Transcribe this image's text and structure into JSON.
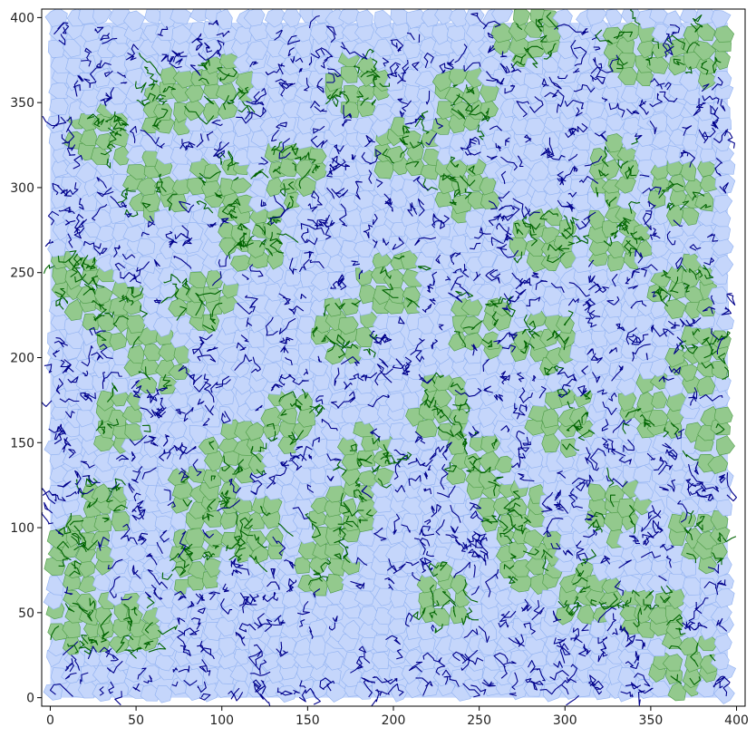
{
  "chart_data": {
    "type": "scatter",
    "title": "",
    "xlabel": "",
    "ylabel": "",
    "xlim": [
      -5,
      405
    ],
    "ylim": [
      -5,
      405
    ],
    "x_ticks": [
      0,
      50,
      100,
      150,
      200,
      250,
      300,
      350,
      400
    ],
    "y_ticks": [
      0,
      50,
      100,
      150,
      200,
      250,
      300,
      350,
      400
    ],
    "x_tick_labels": [
      "0",
      "50",
      "100",
      "150",
      "200",
      "250",
      "300",
      "350",
      "400"
    ],
    "y_tick_labels": [
      "0",
      "50",
      "100",
      "150",
      "200",
      "250",
      "300",
      "350",
      "400"
    ],
    "grid": false,
    "legend": "none",
    "background_region": {
      "x": [
        0,
        395
      ],
      "y": [
        0,
        397
      ]
    },
    "series": [
      {
        "values": [],
        "style": "voronoi cells",
        "color": "#c5d6fb",
        "edge_color": "#8fb0f0"
      },
      {
        "values": [],
        "style": "voronoi cells",
        "color": "#93c98d",
        "edge_color": "#4b9a45"
      },
      {
        "values": [],
        "style": "line segments",
        "color": "#006400"
      },
      {
        "values": [],
        "style": "line segments",
        "color": "#00008b"
      }
    ],
    "green_cluster_centers": [
      [
        20,
        45
      ],
      [
        45,
        40
      ],
      [
        30,
        110
      ],
      [
        15,
        80
      ],
      [
        85,
        80
      ],
      [
        90,
        120
      ],
      [
        120,
        100
      ],
      [
        170,
        110
      ],
      [
        160,
        80
      ],
      [
        230,
        60
      ],
      [
        280,
        80
      ],
      [
        270,
        110
      ],
      [
        310,
        60
      ],
      [
        350,
        50
      ],
      [
        370,
        20
      ],
      [
        330,
        110
      ],
      [
        380,
        95
      ],
      [
        390,
        150
      ],
      [
        250,
        140
      ],
      [
        230,
        170
      ],
      [
        185,
        140
      ],
      [
        140,
        165
      ],
      [
        110,
        145
      ],
      [
        40,
        165
      ],
      [
        60,
        200
      ],
      [
        40,
        225
      ],
      [
        15,
        245
      ],
      [
        90,
        235
      ],
      [
        120,
        270
      ],
      [
        170,
        215
      ],
      [
        200,
        245
      ],
      [
        250,
        220
      ],
      [
        290,
        210
      ],
      [
        290,
        270
      ],
      [
        330,
        270
      ],
      [
        370,
        240
      ],
      [
        380,
        200
      ],
      [
        350,
        170
      ],
      [
        300,
        165
      ],
      [
        330,
        310
      ],
      [
        370,
        300
      ],
      [
        340,
        380
      ],
      [
        380,
        380
      ],
      [
        280,
        390
      ],
      [
        240,
        350
      ],
      [
        210,
        320
      ],
      [
        180,
        360
      ],
      [
        100,
        360
      ],
      [
        70,
        350
      ],
      [
        30,
        330
      ],
      [
        60,
        300
      ],
      [
        100,
        300
      ],
      [
        140,
        310
      ],
      [
        240,
        300
      ]
    ]
  }
}
